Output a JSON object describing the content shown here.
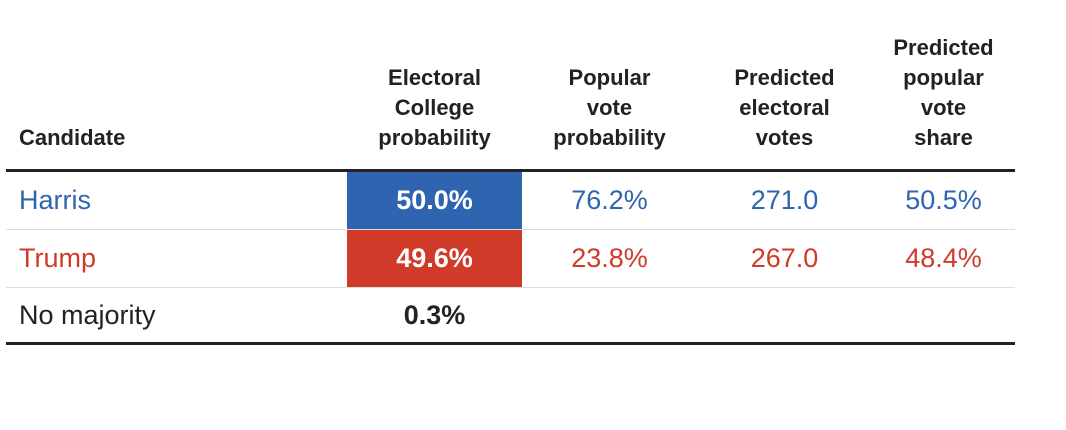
{
  "chart_data": {
    "type": "table",
    "columns": [
      [
        "Candidate"
      ],
      [
        "Electoral",
        "College",
        "probability"
      ],
      [
        "Popular",
        "vote",
        "probability"
      ],
      [
        "Predicted",
        "electoral",
        "votes"
      ],
      [
        "Predicted",
        "popular",
        "vote",
        "share"
      ]
    ],
    "rows": [
      {
        "candidate": "Harris",
        "ec_probability": "50.0%",
        "pv_probability": "76.2%",
        "electoral_votes": "271.0",
        "vote_share": "50.5%",
        "color": "#2e64b0"
      },
      {
        "candidate": "Trump",
        "ec_probability": "49.6%",
        "pv_probability": "23.8%",
        "electoral_votes": "267.0",
        "vote_share": "48.4%",
        "color": "#cf3b28"
      },
      {
        "candidate": "No majority",
        "ec_probability": "0.3%",
        "pv_probability": "",
        "electoral_votes": "",
        "vote_share": "",
        "color": "#222222"
      }
    ]
  }
}
